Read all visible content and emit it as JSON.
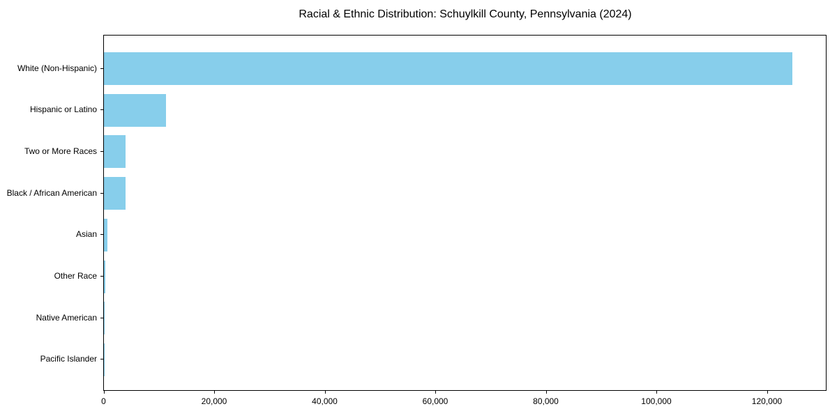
{
  "chart_data": {
    "type": "bar",
    "orientation": "horizontal",
    "title": "Racial & Ethnic Distribution: Schuylkill County, Pennsylvania (2024)",
    "xlabel": "",
    "ylabel": "",
    "categories": [
      "White (Non-Hispanic)",
      "Hispanic or Latino",
      "Two or More Races",
      "Black / African American",
      "Asian",
      "Other Race",
      "Native American",
      "Pacific Islander"
    ],
    "values": [
      124500,
      11250,
      3970,
      3850,
      650,
      200,
      50,
      10
    ],
    "xlim": [
      0,
      130000
    ],
    "xticks": [
      0,
      20000,
      40000,
      60000,
      80000,
      100000,
      120000
    ],
    "xtick_labels": [
      "0",
      "20,000",
      "40,000",
      "60,000",
      "80,000",
      "100,000",
      "120,000"
    ],
    "grid": false,
    "bar_color": "#87ceeb"
  }
}
